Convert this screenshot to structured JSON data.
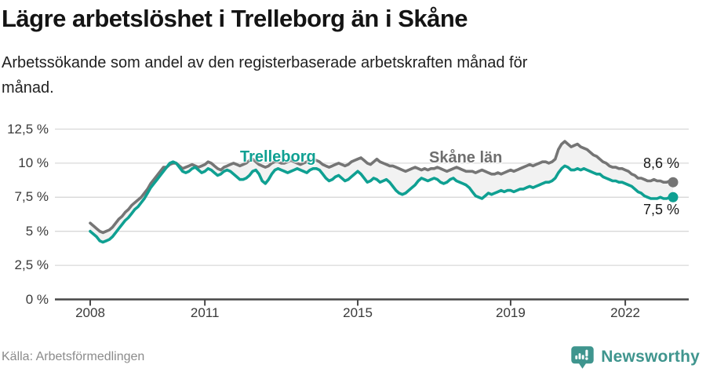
{
  "header": {
    "title": "Lägre arbetslöshet i Trelleborg än i Skåne",
    "subtitle": "Arbetssökande som andel av den registerbaserade arbetskraften månad för månad.",
    "subtitle_line1": "Arbetssökande som andel av den registerbaserade arbetskraften månad för",
    "subtitle_line2": "månad."
  },
  "footer": {
    "source": "Källa: Arbetsförmedlingen",
    "brand": "Newsworthy"
  },
  "colors": {
    "trelleborg": "#0fa092",
    "skane": "#757575",
    "fill_between": "#f2f2f2",
    "grid": "#d8d8d8",
    "axis": "#474747",
    "brand_teal": "#3f958e",
    "text": "#141414"
  },
  "chart_data": {
    "type": "line",
    "title": "Lägre arbetslöshet i Trelleborg än i Skåne",
    "subtitle": "Arbetssökande som andel av den registerbaserade arbetskraften månad för månad.",
    "source": "Källa: Arbetsförmedlingen",
    "x": {
      "start": "2008-01",
      "end": "2023-04",
      "interval": "monthly"
    },
    "x_tick_years": [
      2008,
      2011,
      2015,
      2019,
      2022
    ],
    "x_tick_labels": [
      "2008",
      "2011",
      "2015",
      "2019",
      "2022"
    ],
    "y_ticks": [
      0,
      2.5,
      5,
      7.5,
      10,
      12.5
    ],
    "y_tick_labels": [
      "0 %",
      "2,5 %",
      "5 %",
      "7,5 %",
      "10 %",
      "12,5 %"
    ],
    "ylim": [
      0,
      12.5
    ],
    "grid": true,
    "legend_position": "inline-labels",
    "series": [
      {
        "name": "Skåne län",
        "color": "#757575",
        "end_label": "8,6 %",
        "end_value": 8.6,
        "values": [
          5.6,
          5.4,
          5.2,
          5.0,
          4.9,
          5.0,
          5.1,
          5.3,
          5.6,
          5.9,
          6.1,
          6.4,
          6.6,
          6.9,
          7.1,
          7.3,
          7.5,
          7.8,
          8.1,
          8.5,
          8.8,
          9.1,
          9.4,
          9.7,
          9.7,
          9.9,
          10.0,
          10.0,
          9.8,
          9.6,
          9.7,
          9.8,
          9.9,
          9.8,
          9.7,
          9.8,
          9.9,
          10.1,
          10.0,
          9.8,
          9.6,
          9.5,
          9.7,
          9.8,
          9.9,
          10.0,
          9.9,
          9.8,
          9.9,
          10.0,
          10.2,
          10.3,
          10.1,
          9.9,
          9.8,
          9.7,
          9.8,
          10.0,
          10.1,
          10.1,
          10.0,
          10.0,
          10.1,
          10.2,
          10.1,
          10.0,
          9.9,
          10.0,
          10.1,
          10.2,
          10.3,
          10.2,
          10.1,
          9.9,
          9.8,
          9.7,
          9.8,
          9.9,
          10.0,
          9.9,
          9.8,
          9.9,
          10.1,
          10.2,
          10.3,
          10.4,
          10.2,
          10.0,
          9.9,
          10.1,
          10.3,
          10.1,
          10.0,
          9.9,
          9.8,
          9.8,
          9.7,
          9.6,
          9.5,
          9.4,
          9.5,
          9.6,
          9.7,
          9.6,
          9.5,
          9.6,
          9.5,
          9.6,
          9.6,
          9.7,
          9.6,
          9.5,
          9.4,
          9.5,
          9.6,
          9.7,
          9.6,
          9.5,
          9.4,
          9.4,
          9.4,
          9.3,
          9.4,
          9.5,
          9.4,
          9.3,
          9.2,
          9.2,
          9.3,
          9.2,
          9.3,
          9.4,
          9.5,
          9.4,
          9.5,
          9.6,
          9.7,
          9.8,
          9.9,
          9.8,
          9.9,
          10.0,
          10.1,
          10.1,
          10.0,
          10.1,
          10.3,
          11.0,
          11.4,
          11.6,
          11.4,
          11.2,
          11.3,
          11.4,
          11.2,
          11.1,
          11.0,
          10.8,
          10.6,
          10.5,
          10.3,
          10.1,
          10.0,
          9.8,
          9.7,
          9.7,
          9.6,
          9.6,
          9.5,
          9.4,
          9.2,
          9.1,
          8.9,
          8.9,
          8.8,
          8.7,
          8.7,
          8.8,
          8.7,
          8.7,
          8.6,
          8.6,
          8.7,
          8.6
        ]
      },
      {
        "name": "Trelleborg",
        "color": "#0fa092",
        "end_label": "7,5 %",
        "end_value": 7.5,
        "values": [
          5.0,
          4.8,
          4.6,
          4.3,
          4.2,
          4.3,
          4.4,
          4.6,
          4.9,
          5.2,
          5.5,
          5.8,
          6.0,
          6.3,
          6.6,
          6.8,
          7.1,
          7.4,
          7.8,
          8.2,
          8.5,
          8.8,
          9.1,
          9.4,
          9.7,
          10.0,
          10.1,
          10.0,
          9.7,
          9.4,
          9.3,
          9.4,
          9.6,
          9.7,
          9.5,
          9.3,
          9.4,
          9.6,
          9.5,
          9.3,
          9.1,
          9.2,
          9.4,
          9.5,
          9.4,
          9.2,
          9.0,
          8.8,
          8.8,
          8.9,
          9.1,
          9.4,
          9.5,
          9.2,
          8.7,
          8.5,
          8.8,
          9.2,
          9.5,
          9.6,
          9.5,
          9.4,
          9.3,
          9.4,
          9.5,
          9.6,
          9.5,
          9.4,
          9.3,
          9.5,
          9.6,
          9.6,
          9.5,
          9.2,
          8.9,
          8.7,
          8.8,
          9.0,
          9.1,
          8.9,
          8.7,
          8.8,
          9.0,
          9.2,
          9.4,
          9.2,
          8.9,
          8.6,
          8.7,
          8.9,
          8.8,
          8.6,
          8.7,
          8.8,
          8.6,
          8.3,
          8.0,
          7.8,
          7.7,
          7.8,
          8.0,
          8.2,
          8.4,
          8.7,
          8.9,
          8.8,
          8.7,
          8.8,
          8.9,
          8.8,
          8.6,
          8.5,
          8.6,
          8.8,
          8.9,
          8.7,
          8.6,
          8.5,
          8.4,
          8.2,
          7.9,
          7.6,
          7.5,
          7.4,
          7.6,
          7.8,
          7.7,
          7.8,
          7.9,
          8.0,
          7.9,
          8.0,
          8.0,
          7.9,
          8.0,
          8.1,
          8.1,
          8.2,
          8.3,
          8.2,
          8.3,
          8.4,
          8.5,
          8.6,
          8.6,
          8.7,
          8.9,
          9.3,
          9.6,
          9.8,
          9.7,
          9.5,
          9.5,
          9.6,
          9.5,
          9.6,
          9.5,
          9.4,
          9.3,
          9.2,
          9.2,
          9.0,
          8.9,
          8.8,
          8.7,
          8.7,
          8.6,
          8.6,
          8.5,
          8.4,
          8.3,
          8.1,
          7.9,
          7.8,
          7.6,
          7.5,
          7.4,
          7.4,
          7.4,
          7.5,
          7.4,
          7.4,
          7.5,
          7.5
        ]
      }
    ]
  }
}
